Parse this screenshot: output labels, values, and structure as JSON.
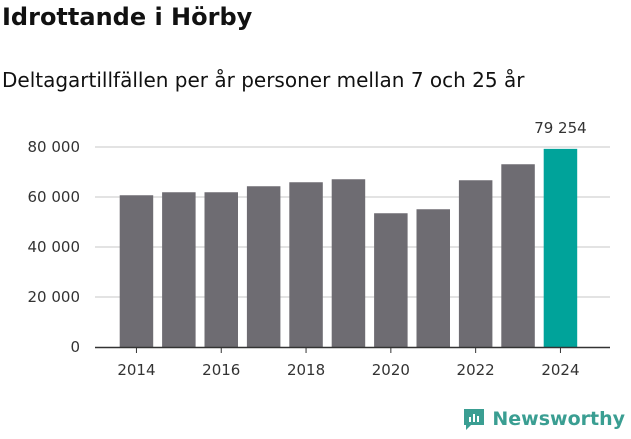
{
  "chart_data": {
    "type": "bar",
    "title": "Idrottande i Hörby",
    "subtitle": "Deltagartillfällen per år personer mellan 7 och 25 år",
    "categories": [
      "2014",
      "2015",
      "2016",
      "2017",
      "2018",
      "2019",
      "2020",
      "2021",
      "2022",
      "2023",
      "2024"
    ],
    "values": [
      60700,
      61900,
      61900,
      64300,
      65900,
      67100,
      53500,
      55100,
      66700,
      73100,
      79254
    ],
    "highlight_index": 10,
    "highlight_label": "79 254",
    "x_tick_labels": [
      "2014",
      "2016",
      "2018",
      "2020",
      "2022",
      "2024"
    ],
    "y_ticks": [
      0,
      20000,
      40000,
      60000,
      80000
    ],
    "y_tick_labels": [
      "0",
      "20 000",
      "40 000",
      "60 000",
      "80 000"
    ],
    "ylim": [
      0,
      80000
    ],
    "grid": true,
    "colors": {
      "bar": "#6e6c72",
      "highlight": "#00a39a",
      "grid": "#e3e3e3",
      "axis": "#333333"
    }
  },
  "brand": {
    "name": "Newsworthy",
    "color": "#3a9e92"
  }
}
